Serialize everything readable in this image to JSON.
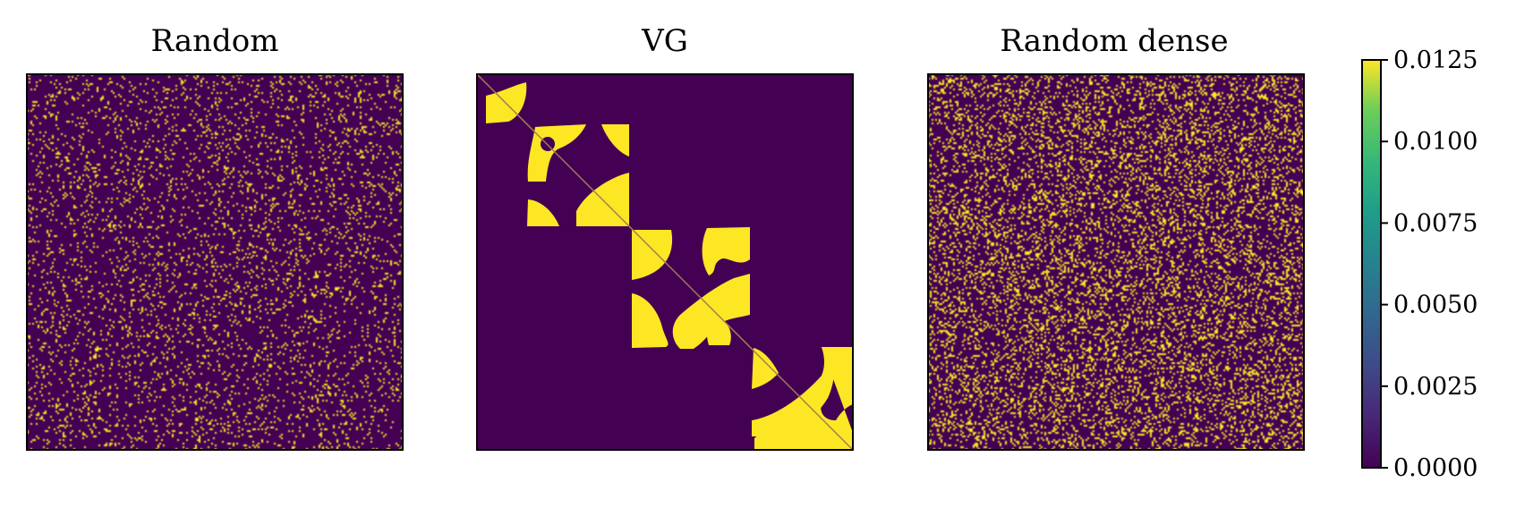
{
  "chart_data": [
    {
      "type": "heatmap",
      "title": "Random",
      "description_values": "sparse random binary matrix",
      "vmin": 0.0,
      "vmax": 0.0125,
      "fill_fraction": 0.1
    },
    {
      "type": "heatmap",
      "title": "VG",
      "vmin": 0.0,
      "vmax": 0.0125
    },
    {
      "type": "heatmap",
      "title": "Random dense",
      "vmin": 0.0,
      "vmax": 0.0125,
      "fill_fraction": 0.22
    }
  ],
  "colorbar": {
    "colormap": "viridis",
    "range": [
      0.0,
      0.0125
    ],
    "ticks": [
      "0.0000",
      "0.0025",
      "0.0050",
      "0.0075",
      "0.0100",
      "0.0125"
    ],
    "tick_values": [
      0.0,
      0.0025,
      0.005,
      0.0075,
      0.01,
      0.0125
    ]
  },
  "colors": {
    "low": "#440154",
    "high": "#fde725",
    "diagonal": "#a08050"
  }
}
